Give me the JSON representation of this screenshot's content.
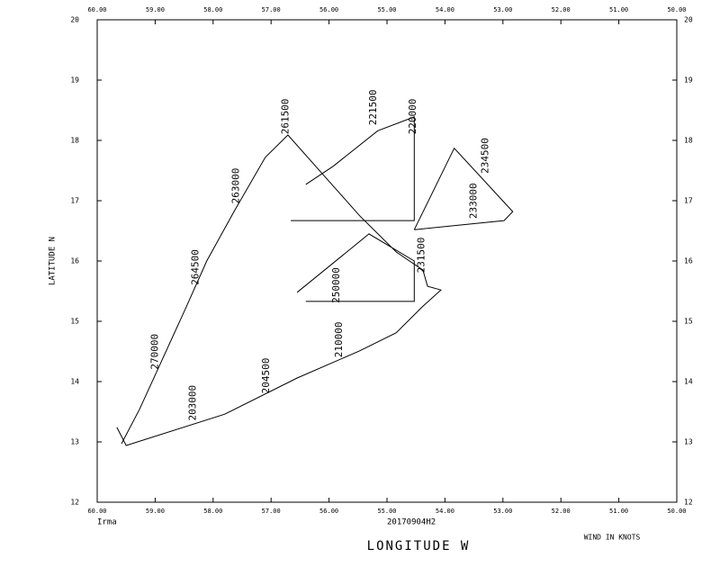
{
  "chart_data": {
    "type": "track",
    "storm": "Irma",
    "flight": "20170904H2",
    "xlabel": "LONGITUDE  W",
    "ylabel": "LATITUDE  N",
    "note": "WIND IN KNOTS",
    "xlim": [
      60,
      50
    ],
    "ylim": [
      12,
      20
    ],
    "xticks": [
      {
        "value": 60,
        "label": "60.00"
      },
      {
        "value": 59,
        "label": "59.00"
      },
      {
        "value": 58,
        "label": "58.00"
      },
      {
        "value": 57,
        "label": "57.00"
      },
      {
        "value": 56,
        "label": "56.00"
      },
      {
        "value": 55,
        "label": "55.00"
      },
      {
        "value": 54,
        "label": "54.00"
      },
      {
        "value": 53,
        "label": "53.00"
      },
      {
        "value": 52,
        "label": "52.00"
      },
      {
        "value": 51,
        "label": "51.00"
      },
      {
        "value": 50,
        "label": "50.00"
      }
    ],
    "yticks": [
      12,
      13,
      14,
      15,
      16,
      17,
      18,
      19,
      20
    ],
    "series": [
      {
        "color": "#000000",
        "x": [
          59.58,
          59.27,
          58.88,
          58.49,
          58.11,
          57.64,
          57.1,
          56.71,
          56.09,
          55.47,
          54.84,
          54.38,
          54.3,
          54.07,
          54.38,
          54.84,
          55.47,
          56.55,
          57.8,
          59.5,
          59.66,
          null,
          56.66,
          54.53,
          54.53,
          55.16,
          55.93,
          56.4,
          null,
          56.4,
          54.53,
          54.53,
          55.31,
          56.55,
          null,
          54.53,
          53.84,
          52.83,
          52.98,
          54.53
        ],
        "y": [
          12.97,
          13.54,
          14.36,
          15.18,
          16.0,
          16.82,
          17.72,
          18.09,
          17.42,
          16.75,
          16.15,
          15.85,
          15.58,
          15.52,
          15.25,
          14.81,
          14.51,
          14.06,
          13.46,
          12.94,
          13.24,
          null,
          16.67,
          16.67,
          18.39,
          18.16,
          17.57,
          17.27,
          null,
          15.33,
          15.33,
          16.0,
          16.45,
          15.48,
          null,
          16.52,
          17.87,
          16.82,
          16.67,
          16.52
        ]
      }
    ],
    "annotations_color": "#cc0000",
    "annotations": [
      {
        "text": "261500",
        "x": 56.75,
        "y": 18.1
      },
      {
        "text": "221500",
        "x": 55.23,
        "y": 18.25
      },
      {
        "text": "220000",
        "x": 54.55,
        "y": 18.1
      },
      {
        "text": "263000",
        "x": 57.6,
        "y": 16.95
      },
      {
        "text": "264500",
        "x": 58.3,
        "y": 15.6
      },
      {
        "text": "270000",
        "x": 59.0,
        "y": 14.2
      },
      {
        "text": "203000",
        "x": 58.35,
        "y": 13.35
      },
      {
        "text": "204500",
        "x": 57.08,
        "y": 13.8
      },
      {
        "text": "210000",
        "x": 55.82,
        "y": 14.4
      },
      {
        "text": "234500",
        "x": 53.3,
        "y": 17.45
      },
      {
        "text": "233000",
        "x": 53.5,
        "y": 16.7
      },
      {
        "text": "250000",
        "x": 55.87,
        "y": 15.3
      },
      {
        "text": "231500",
        "x": 54.4,
        "y": 15.8
      }
    ]
  }
}
